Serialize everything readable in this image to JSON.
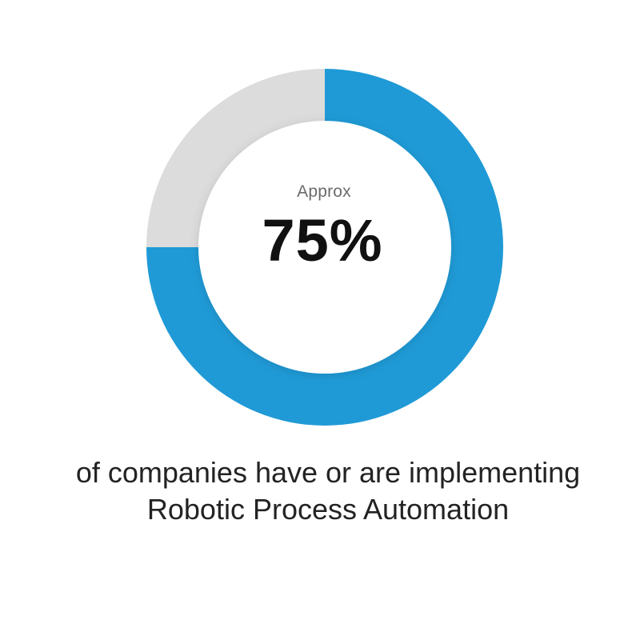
{
  "chart_data": {
    "type": "pie",
    "variant": "donut",
    "categories": [
      "",
      ""
    ],
    "values": [
      75,
      25
    ],
    "colors": [
      "#1f9ad6",
      "#dcdcdc"
    ],
    "start_angle": "12 o'clock, clockwise",
    "center_label": "Approx",
    "center_value": "75%",
    "caption": "of companies have or are implementing Robotic Process Automation"
  }
}
